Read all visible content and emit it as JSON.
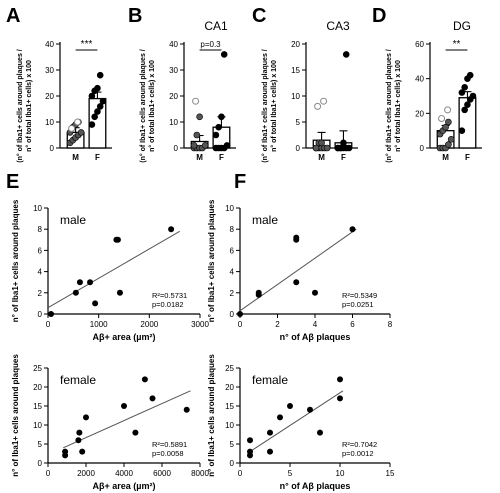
{
  "panel_letters": [
    "A",
    "B",
    "C",
    "D",
    "E",
    "F"
  ],
  "bar_ylabel_1": "(n° of Iba1+ cells around plaques /",
  "bar_ylabel_2": "n° of total Iba1+ cells) x 100",
  "scatter_ylabel": "n° of Iba1+ cells around plaques",
  "chart_data": [
    {
      "id": "A",
      "type": "bar",
      "title": "",
      "categories": [
        "M",
        "F"
      ],
      "means": [
        6,
        19
      ],
      "sem": [
        1.8,
        2.5
      ],
      "ylim": [
        0,
        40
      ],
      "yticks": [
        0,
        10,
        20,
        30,
        40
      ],
      "points": {
        "M": [
          2,
          3,
          4,
          5,
          6,
          6,
          8,
          9,
          10
        ],
        "F": [
          9,
          12,
          14,
          16,
          18,
          20,
          22,
          23,
          28
        ]
      },
      "outliers_M": [
        7.5,
        10
      ],
      "significance": "***",
      "p_text": ""
    },
    {
      "id": "B",
      "type": "bar",
      "title": "CA1",
      "categories": [
        "M",
        "F"
      ],
      "means": [
        2.5,
        8
      ],
      "sem": [
        2.3,
        4
      ],
      "ylim": [
        0,
        40
      ],
      "yticks": [
        0,
        10,
        20,
        30,
        40
      ],
      "points": {
        "M": [
          0,
          0,
          0,
          0,
          1,
          1,
          5,
          12
        ],
        "F": [
          0,
          0,
          0,
          0,
          1,
          5,
          8,
          12,
          36
        ]
      },
      "outliers_M": [
        18
      ],
      "significance": "",
      "p_text": "p=0.3"
    },
    {
      "id": "C",
      "type": "bar",
      "title": "CA3",
      "categories": [
        "M",
        "F"
      ],
      "means": [
        1.5,
        1
      ],
      "sem": [
        1.5,
        2.3
      ],
      "ylim": [
        0,
        20
      ],
      "yticks": [
        0,
        5,
        10,
        15,
        20
      ],
      "points": {
        "M": [
          0,
          0,
          0,
          0,
          0,
          0,
          1,
          1
        ],
        "F": [
          0,
          0,
          0,
          0,
          0,
          0,
          0,
          1,
          18
        ]
      },
      "outliers_M": [
        8,
        9
      ],
      "significance": "",
      "p_text": ""
    },
    {
      "id": "D",
      "type": "bar",
      "title": "DG",
      "categories": [
        "M",
        "F"
      ],
      "means": [
        10,
        29
      ],
      "sem": [
        3,
        3.5
      ],
      "ylim": [
        0,
        60
      ],
      "yticks": [
        0,
        20,
        40,
        60
      ],
      "points": {
        "M": [
          0,
          0,
          0,
          2,
          5,
          8,
          10,
          12,
          15
        ],
        "F": [
          10,
          22,
          25,
          28,
          30,
          32,
          35,
          40,
          42
        ]
      },
      "outliers_M": [
        17,
        22
      ],
      "significance": "**",
      "p_text": ""
    },
    {
      "id": "E-male",
      "type": "scatter",
      "title": "male",
      "xlabel": "Aβ+ area (µm²)",
      "ylabel": "n° of Iba1+ cells around plaques",
      "xlim": [
        0,
        3000
      ],
      "ylim": [
        0,
        10
      ],
      "xticks": [
        0,
        1000,
        2000,
        3000
      ],
      "yticks": [
        0,
        2,
        4,
        6,
        8,
        10
      ],
      "x": [
        60,
        550,
        630,
        830,
        930,
        1350,
        1380,
        1420,
        2430
      ],
      "y": [
        0,
        2,
        3,
        3,
        1,
        7,
        7,
        2,
        8
      ],
      "fit": [
        [
          0,
          0.6
        ],
        [
          2600,
          7.8
        ]
      ],
      "r2": "R²=0.5731",
      "p": "p=0.0182"
    },
    {
      "id": "E-female",
      "type": "scatter",
      "title": "female",
      "xlabel": "Aβ+ area (µm²)",
      "ylabel": "n° of Iba1+ cells around plaques",
      "xlim": [
        0,
        8000
      ],
      "ylim": [
        0,
        25
      ],
      "xticks": [
        0,
        2000,
        4000,
        6000,
        8000
      ],
      "yticks": [
        0,
        5,
        10,
        15,
        20,
        25
      ],
      "x": [
        900,
        900,
        1600,
        1650,
        1800,
        2000,
        4000,
        4600,
        5100,
        5500,
        7300
      ],
      "y": [
        2,
        3,
        6,
        8,
        3,
        12,
        15,
        8,
        22,
        17,
        14
      ],
      "fit": [
        [
          800,
          4
        ],
        [
          7500,
          19
        ]
      ],
      "r2": "R²=0.5891",
      "p": "p=0.0058"
    },
    {
      "id": "F-male",
      "type": "scatter",
      "title": "male",
      "xlabel": "n° of Aβ plaques",
      "ylabel": "n° of Iba1+ cells around plaques",
      "xlim": [
        0,
        8
      ],
      "ylim": [
        0,
        10
      ],
      "xticks": [
        0,
        2,
        4,
        6,
        8
      ],
      "yticks": [
        0,
        2,
        4,
        6,
        8,
        10
      ],
      "x": [
        0,
        1,
        1,
        3,
        3,
        3,
        4,
        6
      ],
      "y": [
        0,
        2,
        1.8,
        7,
        7.2,
        3,
        2,
        8
      ],
      "fit": [
        [
          0,
          0.3
        ],
        [
          6.2,
          8
        ]
      ],
      "r2": "R²=0.5349",
      "p": "p=0.0251"
    },
    {
      "id": "F-female",
      "type": "scatter",
      "title": "female",
      "xlabel": "n° of Aβ plaques",
      "ylabel": "n° of Iba1+ cells around plaques",
      "xlim": [
        0,
        15
      ],
      "ylim": [
        0,
        25
      ],
      "xticks": [
        0,
        5,
        10,
        15
      ],
      "yticks": [
        0,
        5,
        10,
        15,
        20,
        25
      ],
      "x": [
        1,
        1,
        1,
        3,
        3,
        4,
        5,
        7,
        8,
        10,
        10
      ],
      "y": [
        2,
        3,
        6,
        3,
        8,
        12,
        15,
        14,
        8,
        22,
        17
      ],
      "fit": [
        [
          1,
          3
        ],
        [
          10.3,
          19
        ]
      ],
      "r2": "R²=0.7042",
      "p": "p=0.0012"
    }
  ]
}
